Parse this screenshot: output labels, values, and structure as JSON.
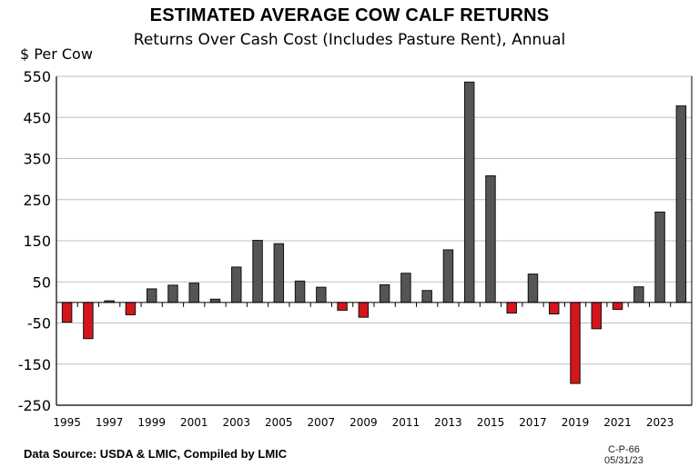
{
  "chart_data": {
    "type": "bar",
    "title": "ESTIMATED AVERAGE COW CALF RETURNS",
    "subtitle": "Returns Over Cash Cost (Includes Pasture Rent), Annual",
    "ylabel": "$ Per Cow",
    "xlabel": "",
    "ylim": [
      -250,
      550
    ],
    "yticks": [
      550,
      450,
      350,
      250,
      150,
      50,
      -50,
      -150,
      -250
    ],
    "grid": true,
    "legend": "none",
    "categories": [
      "1995",
      "1996",
      "1997",
      "1998",
      "1999",
      "2000",
      "2001",
      "2002",
      "2003",
      "2004",
      "2005",
      "2006",
      "2007",
      "2008",
      "2009",
      "2010",
      "2011",
      "2012",
      "2013",
      "2014",
      "2015",
      "2016",
      "2017",
      "2018",
      "2019",
      "2020",
      "2021",
      "2022",
      "2023",
      "2024"
    ],
    "xtick_labels": [
      "1995",
      "1997",
      "1999",
      "2001",
      "2003",
      "2005",
      "2007",
      "2009",
      "2011",
      "2013",
      "2015",
      "2017",
      "2019",
      "2021",
      "2023"
    ],
    "values": [
      -48,
      -88,
      4,
      -30,
      33,
      42,
      47,
      8,
      86,
      151,
      143,
      52,
      37,
      -19,
      -36,
      43,
      71,
      29,
      128,
      536,
      308,
      -26,
      69,
      -28,
      -197,
      -64,
      -17,
      38,
      220,
      478
    ],
    "colors": {
      "positive": "#555555",
      "negative": "#d4161c"
    }
  },
  "footer": {
    "source": "Data Source:  USDA & LMIC, Compiled by LMIC",
    "code": "C-P-66",
    "date": "05/31/23"
  }
}
